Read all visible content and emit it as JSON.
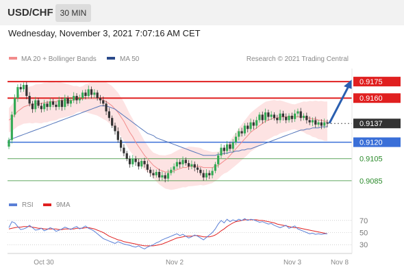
{
  "header": {
    "symbol": "USD/CHF",
    "interval": "30 MIN",
    "datetime": "Wednesday, November 3, 2021 7:07:16 AM CET"
  },
  "legend": {
    "ma20": "MA 20 + Bollinger Bands",
    "ma50": "MA 50",
    "credit": "Research © 2021 Trading Central",
    "rsi": "RSI",
    "rsi_ma": "9MA"
  },
  "colors": {
    "bull": "#33aa55",
    "bear": "#333333",
    "band": "#fde3e3",
    "ma20": "#f28b8b",
    "ma50": "#5577bb",
    "resistance": "#e02020",
    "current": "#333333",
    "support_strong": "#3a6fd8",
    "support": "#2a8a2a",
    "arrow": "#2a5fb0",
    "rsi": "#5a7fd6",
    "rsi_ma": "#e02020"
  },
  "chart_data": [
    {
      "type": "candlestick",
      "ylim": [
        0.9075,
        0.9185
      ],
      "x_labels": [
        "Oct 30",
        "Nov 2",
        "Nov 3",
        "Nov 8"
      ],
      "levels": [
        {
          "value": 0.9175,
          "label": "0.9175",
          "kind": "resistance"
        },
        {
          "value": 0.916,
          "label": "0.9160",
          "kind": "resistance"
        },
        {
          "value": 0.9137,
          "label": "0.9137",
          "kind": "current"
        },
        {
          "value": 0.912,
          "label": "0.9120",
          "kind": "support_strong"
        },
        {
          "value": 0.9105,
          "label": "0.9105",
          "kind": "support"
        },
        {
          "value": 0.9085,
          "label": "0.9085",
          "kind": "support"
        }
      ],
      "forecast_target": 0.9175,
      "close": [
        0.9122,
        0.9145,
        0.916,
        0.917,
        0.9168,
        0.9172,
        0.9162,
        0.9155,
        0.915,
        0.9158,
        0.9153,
        0.915,
        0.9155,
        0.9152,
        0.9157,
        0.9154,
        0.9152,
        0.9158,
        0.9152,
        0.916,
        0.9155,
        0.9158,
        0.9162,
        0.9158,
        0.916,
        0.9165,
        0.9162,
        0.9168,
        0.9163,
        0.9165,
        0.916,
        0.9158,
        0.9155,
        0.9148,
        0.9142,
        0.9135,
        0.913,
        0.9122,
        0.9115,
        0.911,
        0.9105,
        0.91,
        0.9105,
        0.9102,
        0.9098,
        0.9103,
        0.91,
        0.9095,
        0.9092,
        0.909,
        0.9093,
        0.9088,
        0.909,
        0.9087,
        0.9092,
        0.9095,
        0.9098,
        0.9102,
        0.91,
        0.9104,
        0.9101,
        0.9098,
        0.91,
        0.9097,
        0.9095,
        0.9092,
        0.9088,
        0.9092,
        0.909,
        0.9094,
        0.91,
        0.9108,
        0.9115,
        0.9112,
        0.9118,
        0.9114,
        0.912,
        0.9125,
        0.913,
        0.9128,
        0.9135,
        0.9132,
        0.9138,
        0.9135,
        0.914,
        0.9145,
        0.914,
        0.9147,
        0.9143,
        0.9145,
        0.9142,
        0.914,
        0.9146,
        0.9143,
        0.914,
        0.9144,
        0.9141,
        0.9146,
        0.9148,
        0.9142,
        0.9144,
        0.914,
        0.9138,
        0.914,
        0.9136,
        0.9138,
        0.9135,
        0.9138,
        0.9137
      ],
      "ma20": [
        0.914,
        0.9142,
        0.9145,
        0.9148,
        0.915,
        0.9152,
        0.9153,
        0.9154,
        0.9154,
        0.9155,
        0.9155,
        0.9155,
        0.9156,
        0.9156,
        0.9157,
        0.9157,
        0.9157,
        0.9158,
        0.9158,
        0.9158,
        0.9158,
        0.9158,
        0.9158,
        0.9159,
        0.9159,
        0.9159,
        0.916,
        0.916,
        0.916,
        0.916,
        0.916,
        0.9159,
        0.9158,
        0.9157,
        0.9155,
        0.9153,
        0.915,
        0.9147,
        0.9143,
        0.9139,
        0.9134,
        0.9129,
        0.9125,
        0.912,
        0.9116,
        0.9112,
        0.9108,
        0.9105,
        0.9102,
        0.9099,
        0.9097,
        0.9095,
        0.9094,
        0.9093,
        0.9093,
        0.9093,
        0.9094,
        0.9095,
        0.9096,
        0.9097,
        0.9097,
        0.9098,
        0.9098,
        0.9098,
        0.9098,
        0.9098,
        0.9097,
        0.9097,
        0.9097,
        0.9097,
        0.9098,
        0.9099,
        0.9101,
        0.9103,
        0.9105,
        0.9108,
        0.9111,
        0.9114,
        0.9117,
        0.912,
        0.9123,
        0.9126,
        0.9129,
        0.9131,
        0.9133,
        0.9135,
        0.9137,
        0.9139,
        0.914,
        0.9141,
        0.9142,
        0.9142,
        0.9143,
        0.9143,
        0.9143,
        0.9143,
        0.9143,
        0.9143,
        0.9143,
        0.9143,
        0.9143,
        0.9142,
        0.9142,
        0.9141,
        0.9141,
        0.914,
        0.914,
        0.9139,
        0.9139
      ],
      "ma50": [
        0.9122,
        0.9123,
        0.9124,
        0.9125,
        0.9126,
        0.9127,
        0.9128,
        0.9129,
        0.913,
        0.9131,
        0.9132,
        0.9133,
        0.9134,
        0.9135,
        0.9136,
        0.9137,
        0.9138,
        0.9139,
        0.914,
        0.9141,
        0.9142,
        0.9143,
        0.9144,
        0.9145,
        0.9146,
        0.9147,
        0.9148,
        0.9149,
        0.915,
        0.9151,
        0.9152,
        0.9153,
        0.9153,
        0.9153,
        0.9152,
        0.9151,
        0.915,
        0.9148,
        0.9146,
        0.9144,
        0.9142,
        0.914,
        0.9138,
        0.9136,
        0.9134,
        0.9132,
        0.913,
        0.9128,
        0.9127,
        0.9126,
        0.9124,
        0.9123,
        0.9122,
        0.9121,
        0.912,
        0.9119,
        0.9118,
        0.9117,
        0.9116,
        0.9115,
        0.9114,
        0.9113,
        0.9112,
        0.9111,
        0.911,
        0.9109,
        0.9108,
        0.9108,
        0.9108,
        0.9108,
        0.9108,
        0.9109,
        0.9109,
        0.911,
        0.911,
        0.9111,
        0.9111,
        0.9112,
        0.9112,
        0.9113,
        0.9113,
        0.9114,
        0.9114,
        0.9115,
        0.9116,
        0.9117,
        0.9118,
        0.9119,
        0.912,
        0.9121,
        0.9122,
        0.9123,
        0.9124,
        0.9125,
        0.9126,
        0.9127,
        0.9128,
        0.9129,
        0.913,
        0.9131,
        0.9131,
        0.9132,
        0.9132,
        0.9133,
        0.9133,
        0.9133,
        0.9134,
        0.9134,
        0.9134
      ]
    },
    {
      "type": "line",
      "name": "RSI",
      "ylim": [
        20,
        80
      ],
      "yticks": [
        30,
        50,
        70
      ],
      "rsi": [
        58,
        68,
        66,
        60,
        55,
        56,
        58,
        62,
        58,
        54,
        55,
        57,
        53,
        55,
        58,
        56,
        52,
        54,
        56,
        59,
        57,
        55,
        58,
        60,
        56,
        58,
        61,
        57,
        55,
        52,
        48,
        44,
        40,
        38,
        36,
        34,
        32,
        35,
        33,
        31,
        30,
        29,
        27,
        26,
        28,
        25,
        23,
        26,
        28,
        30,
        33,
        35,
        38,
        40,
        42,
        44,
        46,
        48,
        45,
        47,
        44,
        41,
        43,
        46,
        44,
        41,
        38,
        42,
        46,
        50,
        56,
        64,
        70,
        66,
        72,
        68,
        71,
        69,
        72,
        70,
        73,
        70,
        72,
        71,
        69,
        67,
        68,
        66,
        64,
        65,
        62,
        60,
        58,
        60,
        62,
        57,
        59,
        61,
        56,
        54,
        52,
        50,
        48,
        49,
        47,
        48,
        47,
        48,
        48
      ],
      "rsi_ma": [
        56,
        57,
        58,
        59,
        59,
        60,
        60,
        60,
        59,
        58,
        57,
        57,
        56,
        56,
        56,
        56,
        56,
        55,
        55,
        56,
        56,
        56,
        56,
        57,
        57,
        57,
        58,
        58,
        57,
        56,
        54,
        52,
        50,
        47,
        44,
        42,
        40,
        38,
        37,
        35,
        34,
        33,
        32,
        31,
        30,
        29,
        28,
        28,
        28,
        28,
        29,
        30,
        31,
        33,
        35,
        37,
        39,
        41,
        42,
        43,
        44,
        44,
        44,
        45,
        45,
        44,
        43,
        43,
        43,
        44,
        46,
        49,
        53,
        56,
        60,
        63,
        66,
        68,
        69,
        70,
        71,
        71,
        71,
        71,
        71,
        70,
        70,
        69,
        68,
        67,
        66,
        64,
        63,
        62,
        61,
        60,
        59,
        58,
        58,
        57,
        56,
        55,
        54,
        53,
        52,
        51,
        50,
        49,
        48
      ]
    }
  ]
}
